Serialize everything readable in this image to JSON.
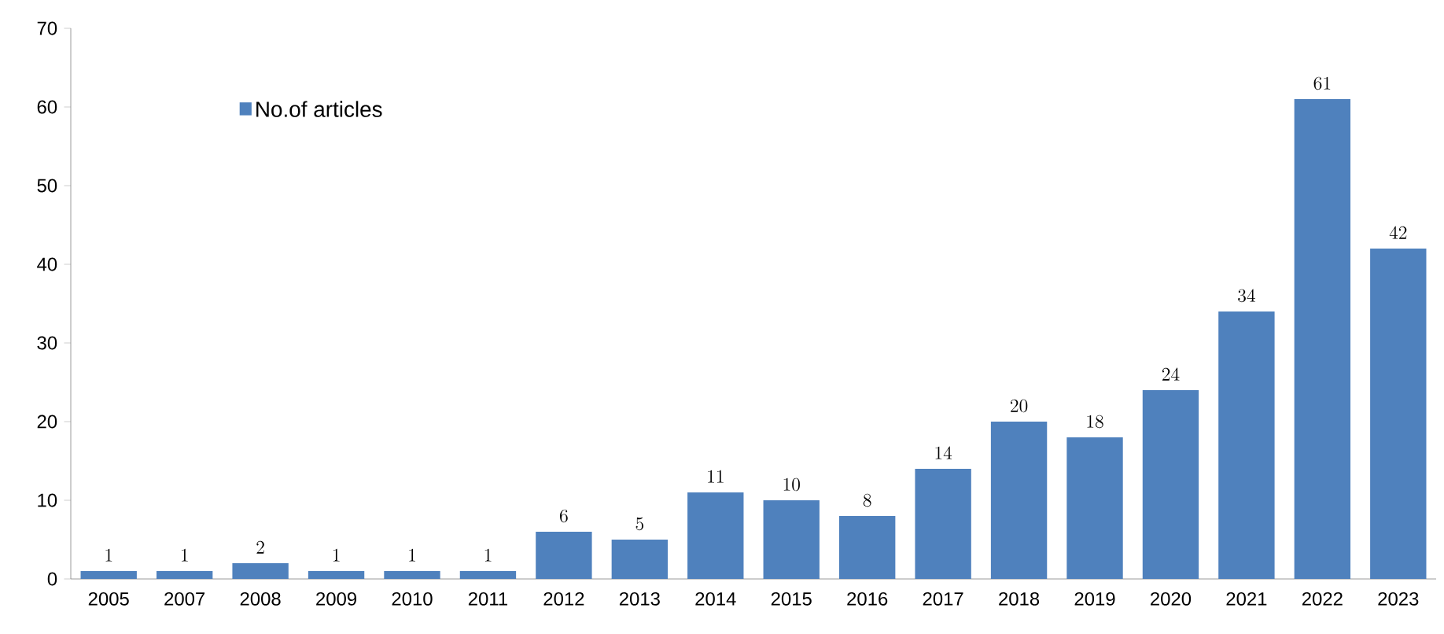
{
  "chart_data": {
    "type": "bar",
    "categories": [
      "2005",
      "2007",
      "2008",
      "2009",
      "2010",
      "2011",
      "2012",
      "2013",
      "2014",
      "2015",
      "2016",
      "2017",
      "2018",
      "2019",
      "2020",
      "2021",
      "2022",
      "2023"
    ],
    "series": [
      {
        "name": "No.of articles",
        "color": "#4f81bd",
        "values": [
          1,
          1,
          2,
          1,
          1,
          1,
          6,
          5,
          11,
          10,
          8,
          14,
          20,
          18,
          24,
          34,
          61,
          42
        ]
      }
    ],
    "ylim": [
      0,
      70
    ],
    "yticks": [
      0,
      10,
      20,
      30,
      40,
      50,
      60,
      70
    ],
    "data_labels": true,
    "legend": "top left",
    "grid": false
  }
}
